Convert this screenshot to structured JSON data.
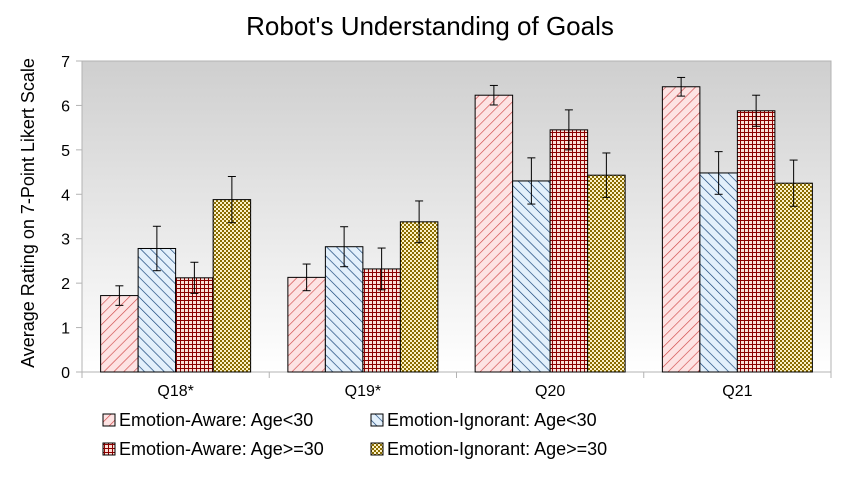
{
  "chart_data": {
    "type": "bar",
    "title": "Robot's Understanding of Goals",
    "xlabel": "",
    "ylabel": "Average Rating on 7-Point Likert Scale",
    "ylim": [
      0,
      7
    ],
    "yticks": [
      0,
      1,
      2,
      3,
      4,
      5,
      6,
      7
    ],
    "grid": false,
    "legend_position": "bottom",
    "categories": [
      "Q18*",
      "Q19*",
      "Q20",
      "Q21"
    ],
    "series": [
      {
        "name": "Emotion-Aware: Age<30",
        "values": [
          1.72,
          2.13,
          6.23,
          6.42
        ],
        "errors": [
          0.22,
          0.3,
          0.22,
          0.21
        ],
        "pattern": "diag-up",
        "color": "#e06666",
        "fill": "#fde3e3"
      },
      {
        "name": "Emotion-Ignorant: Age<30",
        "values": [
          2.78,
          2.82,
          4.3,
          4.48
        ],
        "errors": [
          0.5,
          0.45,
          0.52,
          0.48
        ],
        "pattern": "diag-down",
        "color": "#0d3c73",
        "fill": "#e3f0fb"
      },
      {
        "name": "Emotion-Aware: Age>=30",
        "values": [
          2.12,
          2.32,
          5.45,
          5.88
        ],
        "errors": [
          0.35,
          0.47,
          0.45,
          0.35
        ],
        "pattern": "grid",
        "color": "#8b0000",
        "fill": "#fbe0d8"
      },
      {
        "name": "Emotion-Ignorant: Age>=30",
        "values": [
          3.88,
          3.38,
          4.43,
          4.25
        ],
        "errors": [
          0.52,
          0.47,
          0.5,
          0.52
        ],
        "pattern": "dots",
        "color": "#7f6000",
        "fill": "#fdf2c7"
      }
    ]
  }
}
